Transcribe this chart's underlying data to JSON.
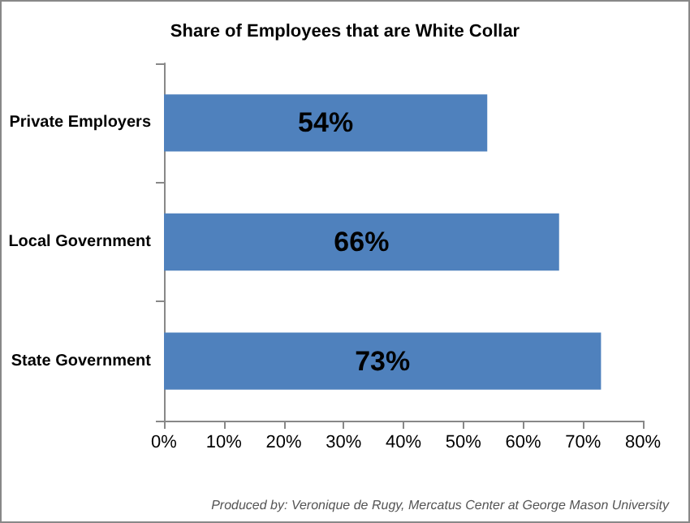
{
  "chart_data": {
    "type": "bar",
    "orientation": "horizontal",
    "title": "Share of Employees that are White Collar",
    "categories": [
      "Private Employers",
      "Local Government",
      "State Government"
    ],
    "values": [
      54,
      66,
      73
    ],
    "color": "#4f81bd",
    "value_labels": [
      "54%",
      "66%",
      "73%"
    ],
    "xlim": [
      0,
      80
    ],
    "xticks": [
      {
        "value": 0,
        "label": "0%"
      },
      {
        "value": 10,
        "label": "10%"
      },
      {
        "value": 20,
        "label": "20%"
      },
      {
        "value": 30,
        "label": "30%"
      },
      {
        "value": 40,
        "label": "40%"
      },
      {
        "value": 50,
        "label": "50%"
      },
      {
        "value": 60,
        "label": "60%"
      },
      {
        "value": 70,
        "label": "70%"
      },
      {
        "value": 80,
        "label": "80%"
      }
    ],
    "annotations": [
      "Produced by: Veronique de Rugy, Mercatus Center at George Mason University"
    ]
  }
}
